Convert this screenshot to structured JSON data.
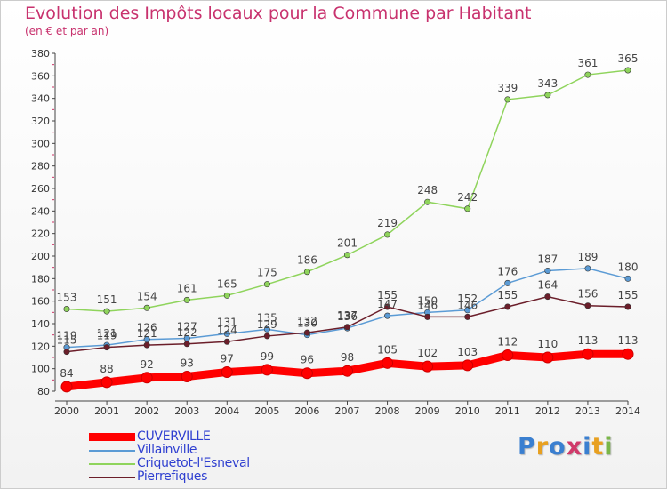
{
  "chart_data": {
    "type": "line",
    "title": "Evolution des Impôts locaux pour la Commune par Habitant",
    "subtitle": "(en € et par an)",
    "x": [
      "2000",
      "2001",
      "2002",
      "2003",
      "2004",
      "2005",
      "2006",
      "2007",
      "2008",
      "2009",
      "2010",
      "2011",
      "2012",
      "2013",
      "2014"
    ],
    "ylim": [
      80,
      380
    ],
    "yticks": [
      80,
      100,
      120,
      140,
      160,
      180,
      200,
      220,
      240,
      260,
      280,
      300,
      320,
      340,
      360,
      380
    ],
    "grid": false,
    "legend": "bottom-left",
    "series": [
      {
        "name": "CUVERVILLE",
        "color": "#ff0000",
        "emphasis": true,
        "values": [
          84,
          88,
          92,
          93,
          97,
          99,
          96,
          98,
          105,
          102,
          103,
          112,
          110,
          113,
          113
        ]
      },
      {
        "name": "Villainville",
        "color": "#5b9bd5",
        "values": [
          119,
          121,
          126,
          127,
          131,
          135,
          130,
          136,
          147,
          150,
          152,
          176,
          187,
          189,
          180
        ]
      },
      {
        "name": "Criquetot-l'Esneval",
        "color": "#8fd45c",
        "values": [
          153,
          151,
          154,
          161,
          165,
          175,
          186,
          201,
          219,
          248,
          242,
          339,
          343,
          361,
          365
        ]
      },
      {
        "name": "Pierrefiques",
        "color": "#6b1e2a",
        "values": [
          115,
          119,
          121,
          122,
          124,
          129,
          132,
          137,
          155,
          146,
          146,
          155,
          164,
          156,
          155
        ]
      }
    ]
  },
  "branding": {
    "logo_letters": [
      "P",
      "r",
      "o",
      "x",
      "i",
      "t",
      "i"
    ],
    "logo_colors": [
      "#3a7fd0",
      "#e8a020",
      "#3a7fd0",
      "#d03a6a",
      "#3a7fd0",
      "#e8a020",
      "#7ab648"
    ]
  }
}
